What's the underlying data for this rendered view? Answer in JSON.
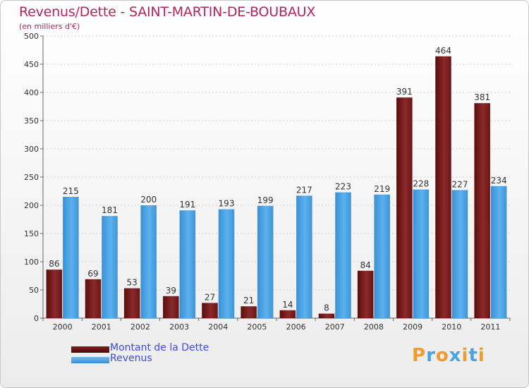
{
  "title": "Revenus/Dette - SAINT-MARTIN-DE-BOUBAUX",
  "subtitle": "(en milliers d'€)",
  "logo": {
    "text": "Proxiti",
    "colors": [
      "#f29a2e",
      "#4aa3df",
      "#f29a2e",
      "#4aa3df",
      "#f29a2e",
      "#4aa3df",
      "#f29a2e"
    ]
  },
  "chart_data": {
    "type": "bar",
    "categories": [
      "2000",
      "2001",
      "2002",
      "2003",
      "2004",
      "2005",
      "2006",
      "2007",
      "2008",
      "2009",
      "2010",
      "2011"
    ],
    "series": [
      {
        "name": "Montant de la Dette",
        "color": "#7a1a1a",
        "values": [
          86,
          69,
          53,
          39,
          27,
          21,
          14,
          8,
          84,
          391,
          464,
          381
        ]
      },
      {
        "name": "Revenus",
        "color": "#4aa3e4",
        "values": [
          215,
          181,
          200,
          191,
          193,
          199,
          217,
          223,
          219,
          228,
          227,
          234
        ]
      }
    ],
    "y_ticks": [
      "0",
      "50",
      "100",
      "150",
      "200",
      "250",
      "300",
      "350",
      "400",
      "450",
      "500"
    ],
    "ylim": [
      0,
      500
    ],
    "grid": true,
    "legend_position": "bottom-left"
  }
}
